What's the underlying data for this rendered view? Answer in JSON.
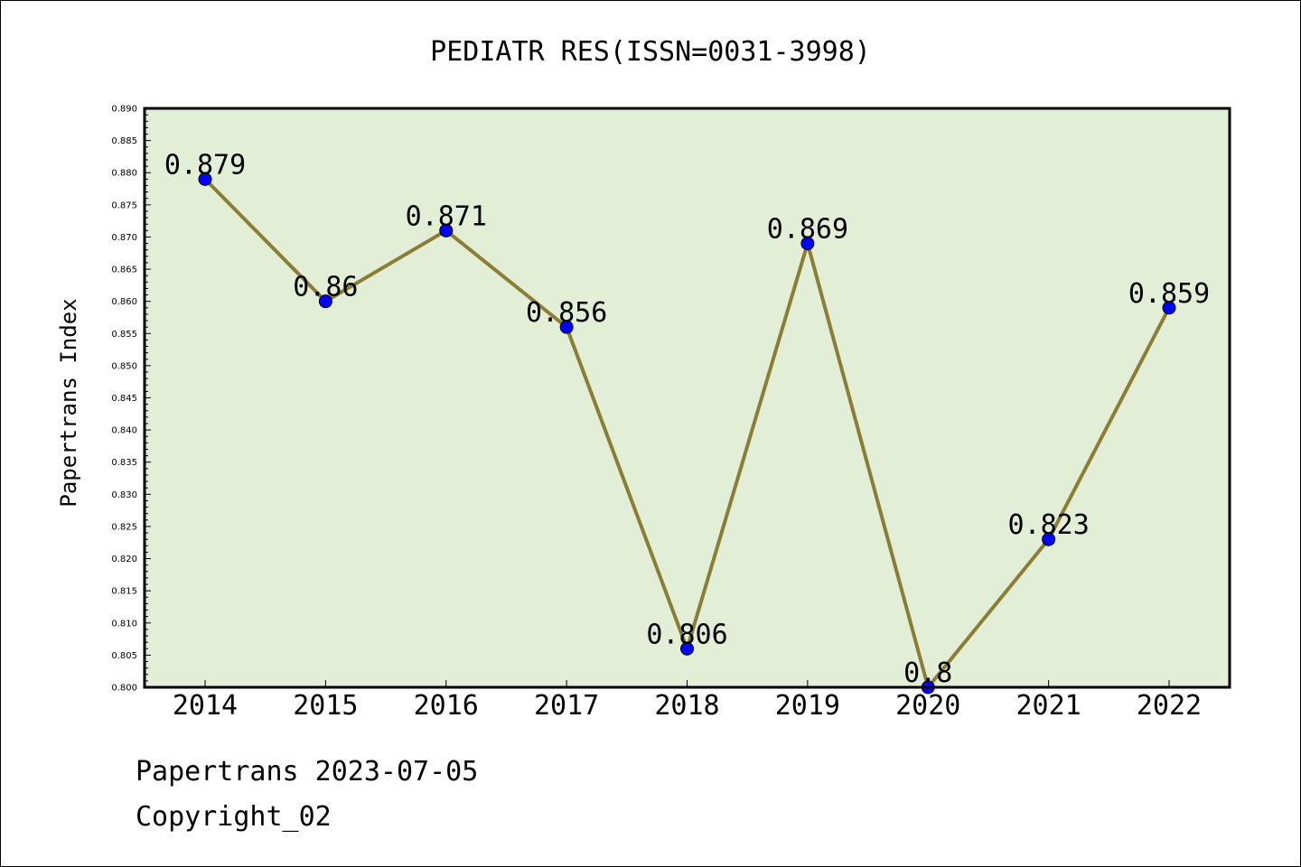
{
  "chart_data": {
    "type": "line",
    "title": "PEDIATR RES(ISSN=0031-3998)",
    "xlabel": "",
    "ylabel": "Papertrans Index",
    "categories": [
      "2014",
      "2015",
      "2016",
      "2017",
      "2018",
      "2019",
      "2020",
      "2021",
      "2022"
    ],
    "values": [
      0.879,
      0.86,
      0.871,
      0.856,
      0.806,
      0.869,
      0.8,
      0.823,
      0.859
    ],
    "data_labels": [
      "0.879",
      "0.86",
      "0.871",
      "0.856",
      "0.806",
      "0.869",
      "0.8",
      "0.823",
      "0.859"
    ],
    "ylim": [
      0.8,
      0.89
    ],
    "yticks": [
      "0.800",
      "0.805",
      "0.810",
      "0.815",
      "0.820",
      "0.825",
      "0.830",
      "0.835",
      "0.840",
      "0.845",
      "0.850",
      "0.855",
      "0.860",
      "0.865",
      "0.870",
      "0.875",
      "0.880",
      "0.885",
      "0.890"
    ],
    "grid": false,
    "colors": {
      "plot_background": "#e2efd6",
      "line": "#8b7d35",
      "marker": "#0000ff"
    }
  },
  "footer": {
    "line1": "Papertrans 2023-07-05",
    "line2": "Copyright_02"
  }
}
